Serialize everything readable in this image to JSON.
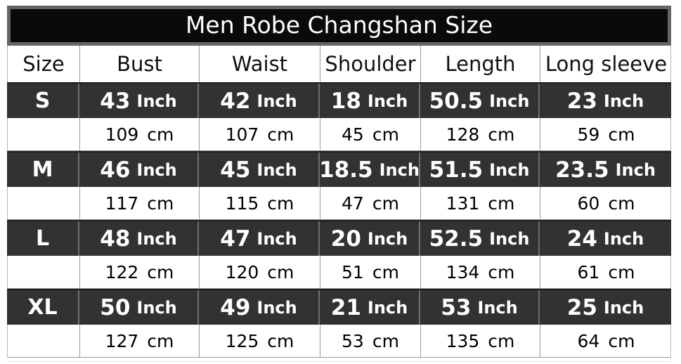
{
  "title": "Men Robe Changshan Size",
  "columns": [
    "Size",
    "Bust",
    "Waist",
    "Shoulder",
    "Length",
    "Long sleeve"
  ],
  "units": {
    "inch": "Inch",
    "cm": "cm"
  },
  "sizes": [
    {
      "label": "S",
      "inch": [
        "43",
        "42",
        "18",
        "50.5",
        "23"
      ],
      "cm": [
        "109",
        "107",
        "45",
        "128",
        "59"
      ]
    },
    {
      "label": "M",
      "inch": [
        "46",
        "45",
        "18.5",
        "51.5",
        "23.5"
      ],
      "cm": [
        "117",
        "115",
        "47",
        "131",
        "60"
      ]
    },
    {
      "label": "L",
      "inch": [
        "48",
        "47",
        "20",
        "52.5",
        "24"
      ],
      "cm": [
        "122",
        "120",
        "51",
        "134",
        "61"
      ]
    },
    {
      "label": "XL",
      "inch": [
        "50",
        "49",
        "21",
        "53",
        "25"
      ],
      "cm": [
        "127",
        "125",
        "53",
        "135",
        "64"
      ]
    }
  ],
  "colors": {
    "title_bg": "#0a0a0a",
    "title_frame": "#656565",
    "dark_row_bg": "#323232",
    "dark_row_text": "#ffffff",
    "light_row_bg": "#ffffff",
    "grid_line": "#9a9a9a"
  },
  "chart_data": {
    "type": "table",
    "title": "Men Robe Changshan Size",
    "columns": [
      "Size",
      "Bust",
      "Waist",
      "Shoulder",
      "Length",
      "Long sleeve"
    ],
    "rows": [
      [
        "S",
        "43 Inch",
        "42 Inch",
        "18 Inch",
        "50.5 Inch",
        "23 Inch"
      ],
      [
        "",
        "109 cm",
        "107 cm",
        "45 cm",
        "128 cm",
        "59 cm"
      ],
      [
        "M",
        "46 Inch",
        "45 Inch",
        "18.5 Inch",
        "51.5 Inch",
        "23.5 Inch"
      ],
      [
        "",
        "117 cm",
        "115 cm",
        "47 cm",
        "131 cm",
        "60 cm"
      ],
      [
        "L",
        "48 Inch",
        "47 Inch",
        "20 Inch",
        "52.5 Inch",
        "24 Inch"
      ],
      [
        "",
        "122 cm",
        "120 cm",
        "51 cm",
        "134 cm",
        "61 cm"
      ],
      [
        "XL",
        "50 Inch",
        "49 Inch",
        "21 Inch",
        "53 Inch",
        "25 Inch"
      ],
      [
        "",
        "127 cm",
        "125 cm",
        "53 cm",
        "135 cm",
        "64 cm"
      ]
    ],
    "layout": {
      "grid": true,
      "inch_rows_style": "dark",
      "cm_rows_style": "light"
    }
  }
}
